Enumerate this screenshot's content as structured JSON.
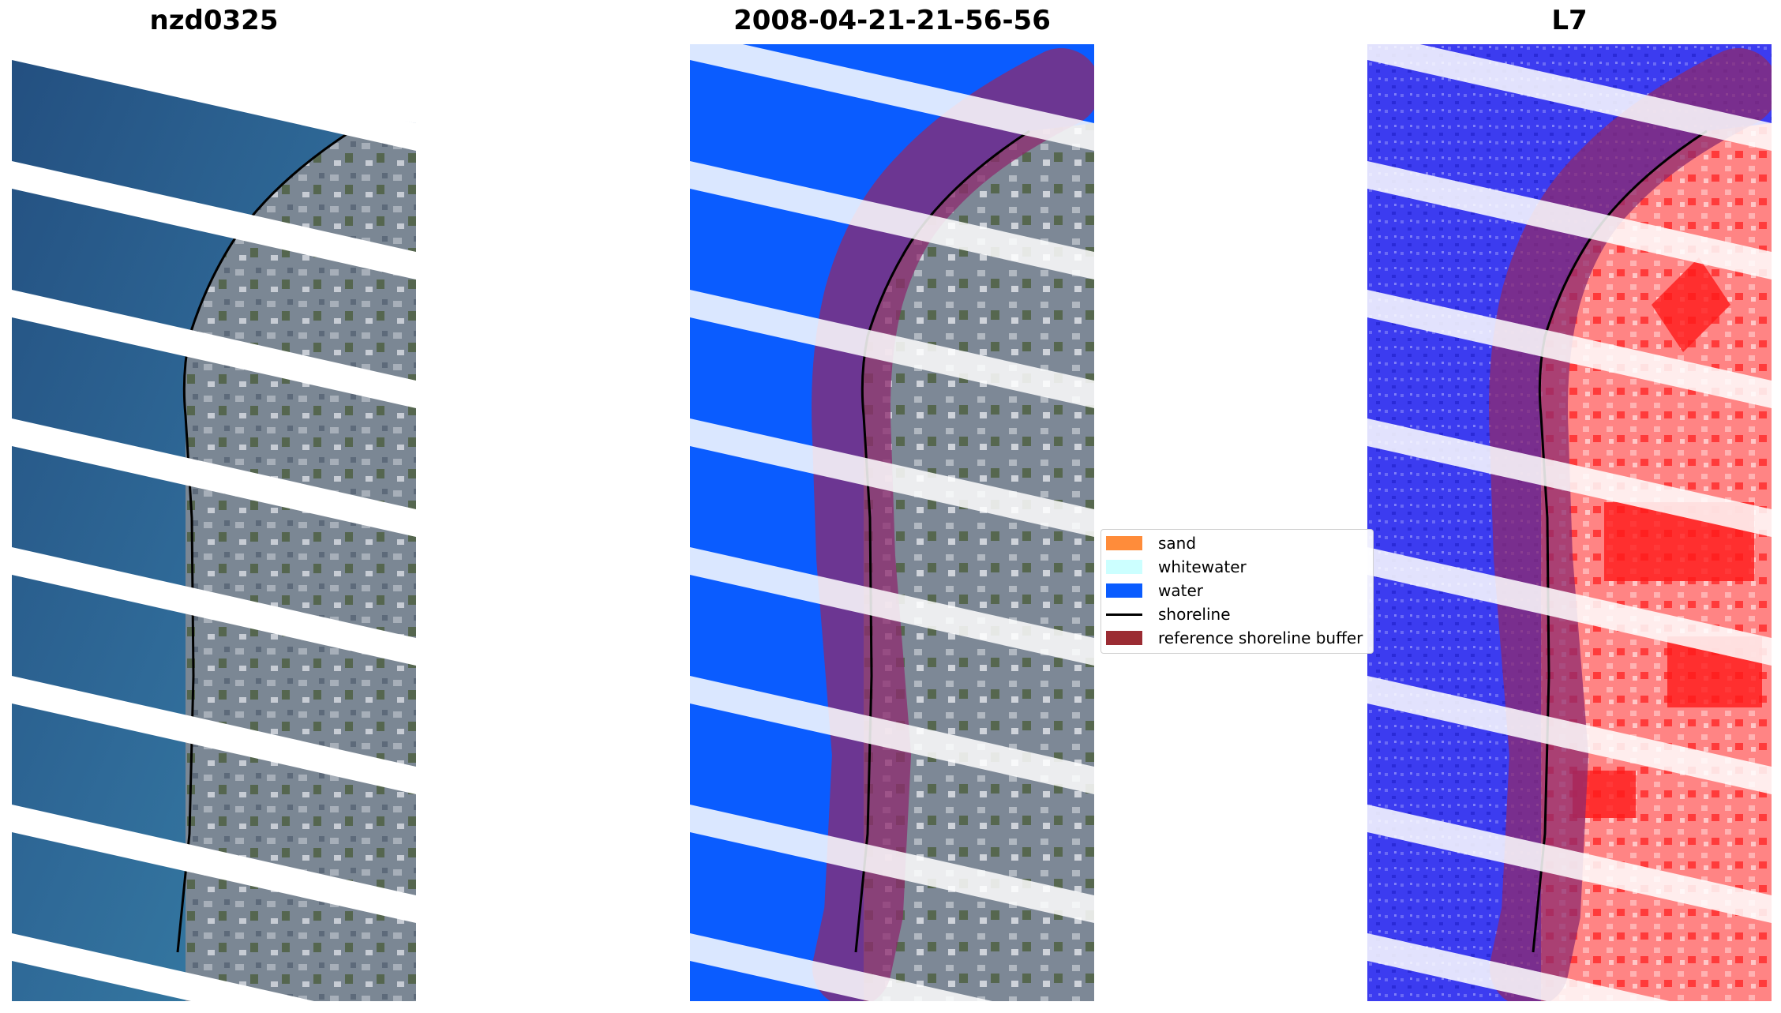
{
  "panels": [
    {
      "title": "nzd0325",
      "kind": "rgb"
    },
    {
      "title": "2008-04-21-21-56-56",
      "kind": "classified"
    },
    {
      "title": "L7",
      "kind": "index"
    }
  ],
  "legend": {
    "items": [
      {
        "label": "sand",
        "color": "#ff8c3a",
        "type": "patch"
      },
      {
        "label": "whitewater",
        "color": "#ccffff",
        "type": "patch"
      },
      {
        "label": "water",
        "color": "#0a5cff",
        "type": "patch"
      },
      {
        "label": "shoreline",
        "color": "#000000",
        "type": "line"
      },
      {
        "label": "reference shoreline buffer",
        "color": "#9b2c33",
        "type": "patch"
      }
    ]
  },
  "colors": {
    "sea_rgb": "#2f6a98",
    "land_rgb": "#7c8796",
    "water_class": "#0a5cff",
    "index_water": "#3b35ea",
    "index_land": "#ff7373",
    "buffer": "#8e2a6e",
    "nodata_stripe": "#ffffff"
  }
}
